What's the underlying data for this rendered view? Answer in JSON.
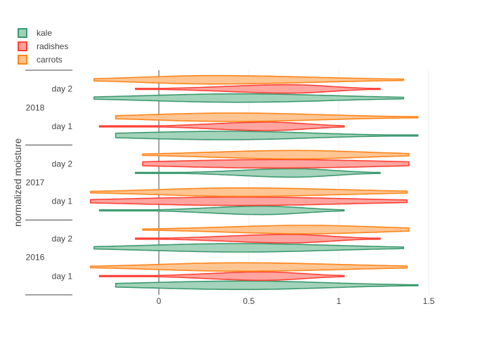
{
  "chart_data": {
    "type": "violin",
    "orientation": "horizontal",
    "ylabel": "normalized moisture",
    "xlim": [
      -0.45,
      1.6
    ],
    "x_ticks": [
      0,
      0.5,
      1,
      1.5
    ],
    "x_tick_labels": [
      "0",
      "0.5",
      "1",
      "1.5"
    ],
    "grid": "vertical gridlines",
    "zero_line": true,
    "legend_position": "top-left",
    "categories": [
      {
        "year": "2016",
        "day": "day 1"
      },
      {
        "year": "2016",
        "day": "day 2"
      },
      {
        "year": "2017",
        "day": "day 1"
      },
      {
        "year": "2017",
        "day": "day 2"
      },
      {
        "year": "2018",
        "day": "day 1"
      },
      {
        "year": "2018",
        "day": "day 2"
      }
    ],
    "years": [
      "2016",
      "2017",
      "2018"
    ],
    "series": [
      {
        "name": "kale",
        "line_color": "#3d9970",
        "fill_color": "#9ed1b6",
        "violins": [
          {
            "min": -0.24,
            "max": 1.44,
            "peak": 0.48,
            "spread_left": 0.55,
            "spread_right": 0.45
          },
          {
            "min": -0.36,
            "max": 1.36,
            "peak": 0.45,
            "spread_left": 0.5,
            "spread_right": 0.5
          },
          {
            "min": -0.33,
            "max": 1.03,
            "peak": 0.58,
            "spread_left": 0.3,
            "spread_right": 0.22
          },
          {
            "min": -0.13,
            "max": 1.23,
            "peak": 0.75,
            "spread_left": 0.3,
            "spread_right": 0.22
          },
          {
            "min": -0.24,
            "max": 1.44,
            "peak": 0.38,
            "spread_left": 0.55,
            "spread_right": 0.45
          },
          {
            "min": -0.36,
            "max": 1.36,
            "peak": 0.45,
            "spread_left": 0.5,
            "spread_right": 0.5
          }
        ]
      },
      {
        "name": "radishes",
        "line_color": "#ff4136",
        "fill_color": "#ffa09b",
        "violins": [
          {
            "min": -0.33,
            "max": 1.03,
            "peak": 0.58,
            "spread_left": 0.3,
            "spread_right": 0.22
          },
          {
            "min": -0.13,
            "max": 1.23,
            "peak": 0.73,
            "spread_left": 0.35,
            "spread_right": 0.22
          },
          {
            "min": -0.38,
            "max": 1.38,
            "peak": 0.45,
            "spread_left": 0.6,
            "spread_right": 0.6
          },
          {
            "min": -0.09,
            "max": 1.39,
            "peak": 0.65,
            "spread_left": 0.6,
            "spread_right": 0.6
          },
          {
            "min": -0.33,
            "max": 1.03,
            "peak": 0.6,
            "spread_left": 0.3,
            "spread_right": 0.22
          },
          {
            "min": -0.13,
            "max": 1.23,
            "peak": 0.73,
            "spread_left": 0.35,
            "spread_right": 0.22
          }
        ]
      },
      {
        "name": "carrots",
        "line_color": "#ff851b",
        "fill_color": "#ffc28d",
        "violins": [
          {
            "min": -0.38,
            "max": 1.38,
            "peak": 0.45,
            "spread_left": 0.45,
            "spread_right": 0.55
          },
          {
            "min": -0.09,
            "max": 1.39,
            "peak": 0.82,
            "spread_left": 0.45,
            "spread_right": 0.4
          },
          {
            "min": -0.38,
            "max": 1.38,
            "peak": 0.45,
            "spread_left": 0.45,
            "spread_right": 0.55
          },
          {
            "min": -0.09,
            "max": 1.39,
            "peak": 0.75,
            "spread_left": 0.45,
            "spread_right": 0.4
          },
          {
            "min": -0.24,
            "max": 1.44,
            "peak": 0.4,
            "spread_left": 0.45,
            "spread_right": 0.5
          },
          {
            "min": -0.36,
            "max": 1.36,
            "peak": 0.3,
            "spread_left": 0.4,
            "spread_right": 0.55
          }
        ]
      }
    ]
  }
}
